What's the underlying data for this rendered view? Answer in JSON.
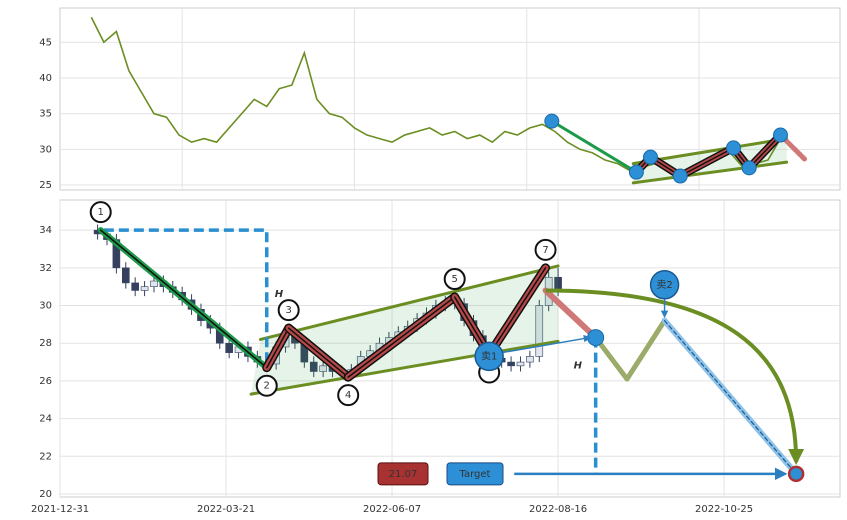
{
  "chart_data": [
    {
      "type": "line",
      "x": [
        10,
        14,
        18,
        22,
        26,
        30,
        34,
        38,
        42,
        46,
        50,
        54,
        58,
        62,
        66,
        70,
        74,
        78,
        82,
        86,
        90,
        94,
        98,
        102,
        106,
        110,
        114,
        118,
        122,
        126,
        130,
        134,
        138,
        142,
        146,
        150,
        154,
        158,
        162,
        166,
        170,
        174,
        178,
        182,
        186,
        190,
        194,
        198,
        202,
        206,
        210,
        214,
        218,
        222,
        226,
        230
      ],
      "values": [
        48.5,
        45,
        46.5,
        41,
        38,
        35,
        34.5,
        32,
        31,
        31.5,
        31,
        33,
        35,
        37,
        36,
        38.5,
        39,
        43.5,
        37,
        35,
        34.5,
        33,
        32,
        31.5,
        31,
        32,
        32.5,
        33,
        32,
        32.5,
        31.5,
        32,
        31,
        32.5,
        32,
        33,
        33.5,
        32.5,
        31,
        30,
        29.5,
        28.5,
        28,
        27,
        27.5,
        28,
        27,
        26.5,
        27.5,
        28,
        29,
        29.5,
        27.5,
        28,
        28.5,
        31.5
      ],
      "color": "#6b8e23",
      "xlim": [
        0,
        249
      ],
      "xticks": [
        39,
        94,
        149,
        204
      ],
      "ylim": [
        24.3,
        49.8
      ],
      "yticks": [
        25,
        30,
        35,
        40,
        45
      ],
      "grid": true,
      "pattern": {
        "points": {
          "x": [
            157,
            184,
            188.5,
            198,
            215,
            220,
            230,
            238
          ],
          "y": [
            33.95,
            26.8,
            28.9,
            26.26,
            30.2,
            27.4,
            32.0,
            28.5
          ]
        },
        "channel": {
          "upper": {
            "x": [
              183,
              232
            ],
            "y": [
              28.0,
              31.5
            ]
          },
          "lower": {
            "x": [
              183,
              232
            ],
            "y": [
              25.3,
              28.2
            ]
          }
        }
      }
    },
    {
      "type": "candlestick",
      "x": [
        12,
        15,
        18,
        21,
        24,
        27,
        30,
        33,
        36,
        39,
        42,
        45,
        48,
        51,
        54,
        57,
        60,
        63,
        66,
        69,
        72,
        75,
        78,
        81,
        84,
        87,
        90,
        93,
        96,
        99,
        102,
        105,
        108,
        111,
        114,
        117,
        120,
        123,
        126,
        129,
        132,
        135,
        138,
        141,
        144,
        147,
        150,
        153,
        156,
        159
      ],
      "open": [
        34.0,
        33.8,
        33.5,
        32.0,
        31.2,
        30.8,
        31.0,
        31.3,
        31.0,
        30.7,
        30.3,
        29.8,
        29.2,
        28.8,
        28.0,
        27.5,
        27.8,
        27.3,
        27.0,
        26.9,
        27.8,
        28.5,
        28.0,
        27.0,
        26.5,
        26.8,
        26.5,
        26.4,
        26.6,
        27.3,
        27.6,
        28.0,
        28.3,
        28.6,
        28.9,
        29.3,
        29.6,
        30.0,
        30.2,
        30.1,
        29.2,
        28.4,
        27.6,
        27.2,
        27.0,
        26.8,
        27.0,
        27.3,
        30.0,
        31.5
      ],
      "high": [
        34.3,
        34.1,
        33.8,
        32.3,
        31.5,
        31.3,
        31.6,
        31.6,
        31.3,
        31.0,
        30.6,
        30.1,
        29.5,
        29.1,
        28.3,
        28.1,
        28.1,
        27.6,
        27.3,
        28.1,
        28.8,
        28.8,
        28.3,
        27.3,
        27.1,
        27.1,
        26.8,
        26.9,
        27.6,
        27.9,
        28.3,
        28.6,
        28.9,
        29.2,
        29.6,
        29.9,
        30.3,
        30.5,
        30.5,
        30.4,
        29.5,
        28.7,
        27.9,
        27.5,
        27.3,
        27.3,
        27.6,
        30.3,
        31.8,
        32.0
      ],
      "low": [
        33.5,
        33.2,
        31.7,
        30.9,
        30.5,
        30.5,
        30.7,
        30.7,
        30.4,
        30.0,
        29.5,
        28.9,
        28.5,
        27.7,
        27.2,
        27.2,
        27.0,
        26.7,
        26.6,
        26.6,
        27.5,
        27.7,
        26.7,
        26.2,
        26.2,
        26.2,
        26.1,
        26.1,
        26.3,
        27.0,
        27.3,
        27.7,
        28.0,
        28.3,
        28.6,
        29.0,
        29.3,
        29.7,
        29.8,
        28.9,
        28.1,
        27.3,
        26.9,
        26.7,
        26.5,
        26.5,
        26.7,
        27.0,
        29.7,
        30.5
      ],
      "close": [
        33.8,
        33.5,
        32.0,
        31.2,
        30.8,
        31.0,
        31.3,
        31.0,
        30.7,
        30.3,
        29.8,
        29.2,
        28.8,
        28.0,
        27.5,
        27.8,
        27.3,
        27.0,
        26.9,
        27.8,
        28.5,
        28.0,
        27.0,
        26.5,
        26.8,
        26.5,
        26.4,
        26.6,
        27.3,
        27.6,
        28.0,
        28.3,
        28.6,
        28.9,
        29.3,
        29.6,
        30.0,
        30.2,
        30.1,
        29.2,
        28.4,
        27.6,
        27.2,
        27.0,
        26.8,
        27.0,
        27.3,
        30.0,
        31.5,
        30.8
      ],
      "up_color": "#dfe6f0",
      "down_color": "#34405e",
      "xlim": [
        0,
        249
      ],
      "xticks": [
        {
          "value": 0,
          "label": "2021-12-31"
        },
        {
          "value": 53,
          "label": "2022-03-21"
        },
        {
          "value": 106,
          "label": "2022-06-07"
        },
        {
          "value": 159,
          "label": "2022-08-16"
        },
        {
          "value": 212,
          "label": "2022-10-25"
        }
      ],
      "ylim": [
        19.84,
        35.6
      ],
      "yticks": [
        20,
        22,
        24,
        26,
        28,
        30,
        32,
        34
      ],
      "grid": true,
      "pattern": {
        "points": {
          "labels": [
            "1",
            "2",
            "3",
            "4",
            "5",
            null,
            "7"
          ],
          "x": [
            13,
            66,
            73,
            92,
            126,
            137,
            155
          ],
          "y": [
            34,
            26.7,
            28.8,
            26.2,
            30.45,
            27.4,
            32.0
          ]
        },
        "channel": {
          "upper": {
            "x": [
              64,
              159
            ],
            "y": [
              28.2,
              32.1
            ]
          },
          "lower": {
            "x": [
              61,
              159
            ],
            "y": [
              25.3,
              28.1
            ]
          }
        },
        "height_box": {
          "x": [
            14,
            66
          ],
          "y": [
            34,
            27
          ]
        },
        "h_label": "H",
        "projection": {
          "x": [
            155,
            171,
            181,
            193,
            235
          ],
          "y": [
            30.8,
            28.3,
            26.1,
            29.2,
            21.07
          ]
        },
        "sell": {
          "labels": [
            "卖1",
            "卖2"
          ],
          "x": [
            137,
            193
          ],
          "y": [
            27.3,
            31.1
          ]
        },
        "target": {
          "value": 21.07,
          "label": "Target",
          "x": [
            145,
            234
          ]
        }
      }
    }
  ]
}
